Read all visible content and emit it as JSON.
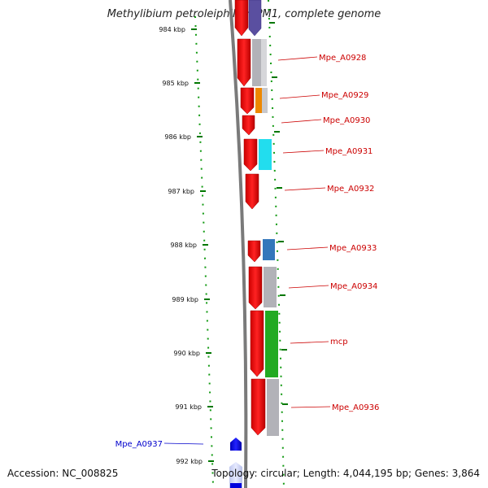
{
  "title": "Methylibium petroleiphilum PM1, complete genome",
  "accession": "Accession: NC_008825",
  "summary": "Topology: circular; Length: 4,044,195 bp; Genes: 3,864",
  "colors": {
    "plus_strand_label": "#cc0000",
    "minus_strand_label": "#0000cc",
    "tick": "#007700",
    "backbone": "#7a7a7a"
  },
  "ticks": [
    {
      "label": "984 kbp"
    },
    {
      "label": "985 kbp"
    },
    {
      "label": "986 kbp"
    },
    {
      "label": "987 kbp"
    },
    {
      "label": "988 kbp"
    },
    {
      "label": "989 kbp"
    },
    {
      "label": "990 kbp"
    },
    {
      "label": "991 kbp"
    },
    {
      "label": "992 kbp"
    }
  ],
  "labeled_genes": [
    {
      "name": "Mpe_A0928",
      "strand": "+"
    },
    {
      "name": "Mpe_A0929",
      "strand": "+"
    },
    {
      "name": "Mpe_A0930",
      "strand": "+"
    },
    {
      "name": "Mpe_A0931",
      "strand": "+"
    },
    {
      "name": "Mpe_A0932",
      "strand": "+"
    },
    {
      "name": "Mpe_A0933",
      "strand": "+"
    },
    {
      "name": "Mpe_A0934",
      "strand": "+"
    },
    {
      "name": "mcp",
      "strand": "+"
    },
    {
      "name": "Mpe_A0936",
      "strand": "+"
    },
    {
      "name": "Mpe_A0937",
      "strand": "-"
    }
  ],
  "cog_colors": [
    "#5a4fa0",
    "#b8b8bc",
    "#ee8800",
    "#22ddee",
    "#3377bb",
    "#22aa22"
  ]
}
